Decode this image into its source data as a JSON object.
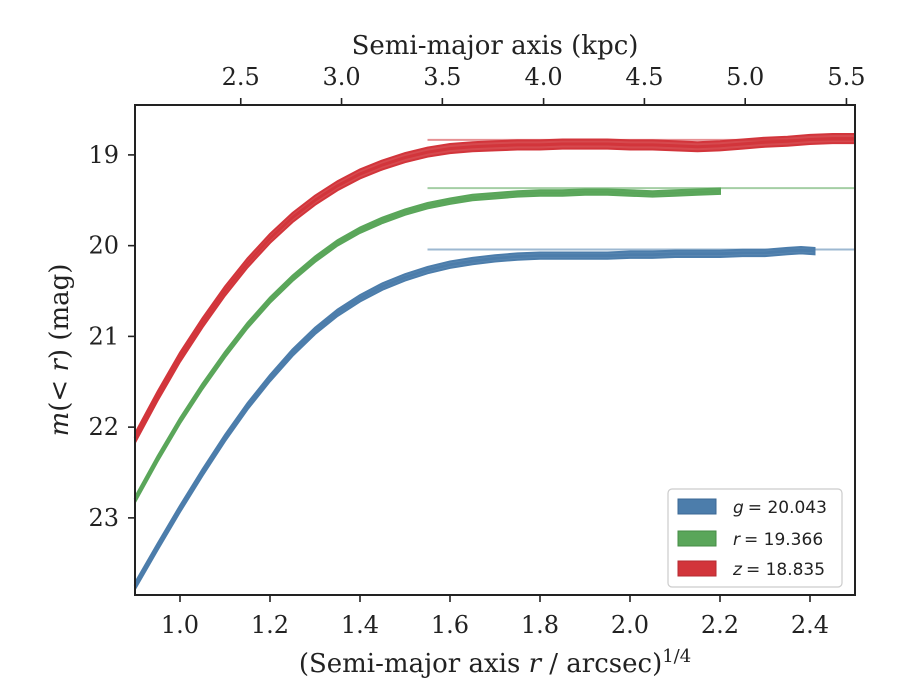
{
  "chart_data": {
    "type": "line",
    "xlabel": "(Semi-major axis r / arcsec)^{1/4}",
    "xlabel_parts": {
      "pre": "(Semi-major axis ",
      "var": "r",
      "post": " / arcsec)",
      "sup": "1/4"
    },
    "ylabel": "m(< r) (mag)",
    "ylabel_parts": {
      "var1": "m",
      "mid": "(< ",
      "var2": "r",
      "post": ") (mag)"
    },
    "top_xlabel": "Semi-major axis (kpc)",
    "xlim": [
      0.9,
      2.5
    ],
    "ylim": [
      18.45,
      23.85
    ],
    "y_inverted": true,
    "x_ticks": [
      1.0,
      1.2,
      1.4,
      1.6,
      1.8,
      2.0,
      2.2,
      2.4
    ],
    "x_tick_labels": [
      "1.0",
      "1.2",
      "1.4",
      "1.6",
      "1.8",
      "2.0",
      "2.2",
      "2.4"
    ],
    "y_ticks": [
      19,
      20,
      21,
      22,
      23
    ],
    "y_tick_labels": [
      "19",
      "20",
      "21",
      "22",
      "23"
    ],
    "top_ticks_kpc": [
      2.5,
      3.0,
      3.5,
      4.0,
      4.5,
      5.0,
      5.5
    ],
    "top_tick_labels": [
      "2.5",
      "3.0",
      "3.5",
      "4.0",
      "4.5",
      "5.0",
      "5.5"
    ],
    "top_ticks_x_position": [
      1.135,
      1.359,
      1.583,
      1.808,
      2.032,
      2.256,
      2.481
    ],
    "grid": false,
    "legend_position": "lower-right",
    "series": [
      {
        "name": "g",
        "label_value": "= 20.043",
        "color": "#4c7dab",
        "asymptote": 20.043,
        "band_width": 0.07,
        "x": [
          0.9,
          0.95,
          1.0,
          1.05,
          1.1,
          1.15,
          1.2,
          1.25,
          1.3,
          1.35,
          1.4,
          1.45,
          1.5,
          1.55,
          1.6,
          1.65,
          1.7,
          1.75,
          1.8,
          1.85,
          1.9,
          1.95,
          2.0,
          2.05,
          2.1,
          2.15,
          2.2,
          2.25,
          2.3,
          2.35,
          2.38,
          2.41
        ],
        "y": [
          23.75,
          23.32,
          22.9,
          22.5,
          22.12,
          21.77,
          21.46,
          21.18,
          20.94,
          20.74,
          20.58,
          20.45,
          20.35,
          20.27,
          20.21,
          20.17,
          20.14,
          20.12,
          20.11,
          20.11,
          20.11,
          20.11,
          20.1,
          20.1,
          20.09,
          20.09,
          20.09,
          20.08,
          20.08,
          20.06,
          20.05,
          20.06
        ]
      },
      {
        "name": "r",
        "label_value": "= 19.366",
        "color": "#5aa65a",
        "asymptote": 19.366,
        "band_width": 0.06,
        "x": [
          0.9,
          0.95,
          1.0,
          1.05,
          1.1,
          1.15,
          1.2,
          1.25,
          1.3,
          1.35,
          1.4,
          1.45,
          1.5,
          1.55,
          1.6,
          1.65,
          1.7,
          1.75,
          1.8,
          1.85,
          1.9,
          1.95,
          2.0,
          2.05,
          2.1,
          2.15,
          2.2
        ],
        "y": [
          22.8,
          22.35,
          21.93,
          21.55,
          21.2,
          20.88,
          20.6,
          20.36,
          20.15,
          19.97,
          19.83,
          19.72,
          19.63,
          19.56,
          19.51,
          19.47,
          19.45,
          19.43,
          19.42,
          19.42,
          19.41,
          19.41,
          19.42,
          19.43,
          19.42,
          19.41,
          19.4
        ]
      },
      {
        "name": "z",
        "label_value": "= 18.835",
        "color": "#d2353b",
        "asymptote": 18.835,
        "band_width": 0.1,
        "x": [
          0.9,
          0.95,
          1.0,
          1.05,
          1.1,
          1.15,
          1.2,
          1.25,
          1.3,
          1.35,
          1.4,
          1.45,
          1.5,
          1.55,
          1.6,
          1.65,
          1.7,
          1.75,
          1.8,
          1.85,
          1.9,
          1.95,
          2.0,
          2.05,
          2.1,
          2.15,
          2.2,
          2.25,
          2.3,
          2.35,
          2.4,
          2.45,
          2.5
        ],
        "y": [
          22.12,
          21.66,
          21.23,
          20.85,
          20.5,
          20.19,
          19.92,
          19.69,
          19.5,
          19.34,
          19.21,
          19.11,
          19.03,
          18.97,
          18.93,
          18.91,
          18.9,
          18.89,
          18.89,
          18.88,
          18.88,
          18.88,
          18.89,
          18.89,
          18.9,
          18.91,
          18.9,
          18.88,
          18.86,
          18.85,
          18.83,
          18.82,
          18.82
        ]
      }
    ]
  }
}
